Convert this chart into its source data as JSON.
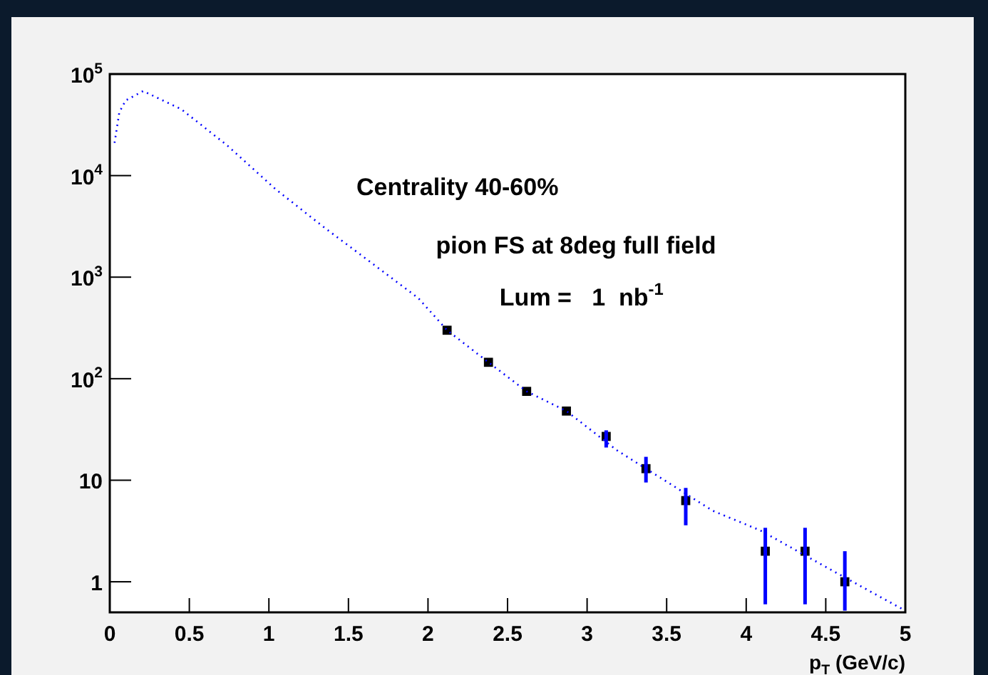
{
  "chart_data": {
    "type": "scatter",
    "xlabel": "p$_{T}$ (GeV/c)",
    "log": "y",
    "grid": false,
    "legend": false,
    "xlim": [
      0,
      5
    ],
    "xticks": [
      0,
      0.5,
      1,
      1.5,
      2,
      2.5,
      3,
      3.5,
      4,
      4.5,
      5
    ],
    "ylim": [
      0.5,
      100000
    ],
    "yticks": [
      1,
      10,
      {
        "value": 100,
        "label": "10$^{2}$"
      },
      {
        "value": 1000,
        "label": "10$^{3}$"
      },
      {
        "value": 10000,
        "label": "10$^{4}$"
      },
      {
        "value": 100000,
        "label": "10$^{5}$"
      }
    ],
    "annotations": [
      "Centrality 40-60%",
      "pion FS at 8deg full field",
      "Lum =   1  nb$^{-1}$"
    ],
    "series": [
      {
        "type": "line",
        "color": "#0000ff",
        "marker": "none",
        "line_style": "dotted",
        "x": [
          0.03,
          0.06,
          0.1,
          0.21,
          0.45,
          0.74,
          1.04,
          1.34,
          1.64,
          1.94,
          2.12,
          2.38,
          2.62,
          2.87,
          3.19,
          3.79,
          4.09,
          4.5,
          4.98
        ],
        "values": [
          21000,
          42000,
          55000,
          68000,
          45000,
          19700,
          7400,
          3150,
          1400,
          620,
          300,
          145,
          75,
          48,
          19.6,
          5.0,
          3.2,
          1.4,
          0.54
        ]
      },
      {
        "type": "scatter",
        "color": "#000000",
        "marker": "square",
        "x": [
          2.12,
          2.38,
          2.62,
          2.87,
          3.12,
          3.37,
          3.62,
          4.12,
          4.37,
          4.62
        ],
        "values": [
          300,
          145,
          75,
          48,
          27,
          13,
          6.3,
          2,
          2,
          1
        ],
        "errors": [
          null,
          null,
          null,
          null,
          [
            21,
            31
          ],
          [
            9.5,
            17
          ],
          [
            3.6,
            8.4
          ],
          [
            0.6,
            3.4
          ],
          [
            0.6,
            3.4
          ],
          [
            0.52,
            2
          ]
        ]
      }
    ]
  }
}
